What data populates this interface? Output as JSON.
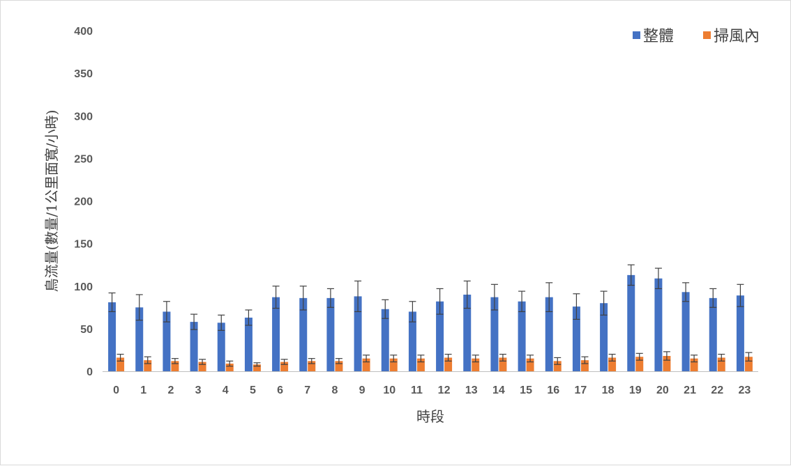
{
  "chart_data": {
    "type": "bar",
    "xlabel": "時段",
    "ylabel": "鳥流量(數量/1公里面寬/小時)",
    "ylim": [
      0,
      400
    ],
    "yticks": [
      "0",
      "50",
      "100",
      "150",
      "200",
      "250",
      "300",
      "350",
      "400"
    ],
    "categories": [
      "0",
      "1",
      "2",
      "3",
      "4",
      "5",
      "6",
      "7",
      "8",
      "9",
      "10",
      "11",
      "12",
      "13",
      "14",
      "15",
      "16",
      "17",
      "18",
      "19",
      "20",
      "21",
      "22",
      "23"
    ],
    "legend_position": "top-right",
    "grid": false,
    "series": [
      {
        "name": "整體",
        "color": "#4472C4",
        "values": [
          81,
          75,
          70,
          58,
          57,
          63,
          87,
          86,
          86,
          88,
          73,
          70,
          82,
          90,
          87,
          82,
          87,
          76,
          80,
          113,
          109,
          93,
          86,
          89
        ],
        "error": [
          11,
          15,
          12,
          9,
          9,
          9,
          13,
          14,
          11,
          18,
          11,
          12,
          15,
          16,
          15,
          12,
          17,
          15,
          14,
          12,
          12,
          11,
          11,
          13
        ]
      },
      {
        "name": "掃風內",
        "color": "#ED7D31",
        "values": [
          16,
          13,
          12,
          11,
          9,
          8,
          11,
          12,
          12,
          15,
          15,
          15,
          16,
          15,
          16,
          15,
          12,
          13,
          16,
          17,
          18,
          15,
          16,
          17
        ],
        "error": [
          4,
          4,
          3,
          3,
          3,
          2,
          3,
          3,
          3,
          4,
          4,
          4,
          4,
          4,
          4,
          4,
          4,
          4,
          4,
          4,
          5,
          4,
          4,
          5
        ]
      }
    ]
  }
}
